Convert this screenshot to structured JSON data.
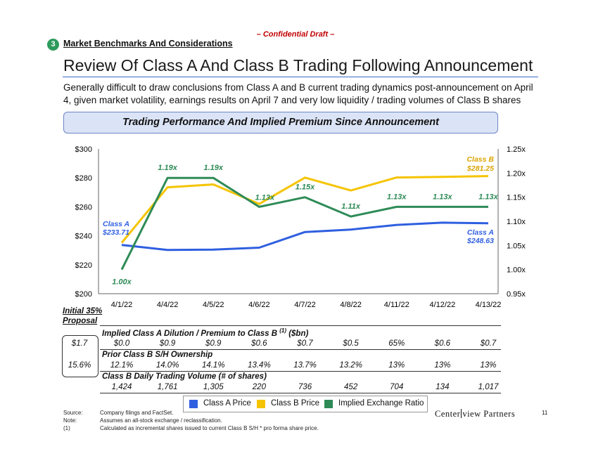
{
  "header": {
    "confidential": "– Confidential Draft –",
    "section_number": "3",
    "section_title": "Market Benchmarks And Considerations",
    "page_title": "Review Of Class A And Class B Trading Following Announcement",
    "subtitle": "Generally difficult to draw conclusions from Class A and B current trading dynamics post-announcement on April 4, given market volatility, earnings results on April 7 and very low liquidity / trading volumes of Class B shares",
    "banner": "Trading Performance And Implied Premium Since Announcement"
  },
  "chart_data": {
    "type": "line",
    "categories": [
      "4/1/22",
      "4/4/22",
      "4/5/22",
      "4/6/22",
      "4/7/22",
      "4/8/22",
      "4/11/22",
      "4/12/22",
      "4/13/22"
    ],
    "left_axis": {
      "ticks": [
        "$200",
        "$220",
        "$240",
        "$260",
        "$280",
        "$300"
      ],
      "range": [
        200,
        300
      ]
    },
    "right_axis": {
      "ticks": [
        "0.95x",
        "1.00x",
        "1.05x",
        "1.10x",
        "1.15x",
        "1.20x",
        "1.25x"
      ],
      "range": [
        0.95,
        1.25
      ]
    },
    "series": [
      {
        "name": "Class A Price",
        "axis": "left",
        "color": "#2f5fe0",
        "values": [
          233.71,
          230.2,
          230.5,
          231.8,
          242.6,
          244.3,
          247.5,
          249.1,
          248.63
        ]
      },
      {
        "name": "Class B Price",
        "axis": "left",
        "color": "#f5c400",
        "values": [
          235.2,
          273.5,
          275.5,
          262.0,
          280.2,
          271.3,
          280.3,
          280.7,
          281.25
        ]
      },
      {
        "name": "Implied Exchange Ratio",
        "axis": "right",
        "color": "#2e8b57",
        "values": [
          1.0,
          1.19,
          1.19,
          1.13,
          1.15,
          1.11,
          1.13,
          1.13,
          1.13
        ]
      }
    ],
    "ratio_labels": [
      "1.00x",
      "1.19x",
      "1.19x",
      "1.13x",
      "1.15x",
      "1.11x",
      "1.13x",
      "1.13x",
      "1.13x"
    ],
    "annotations": {
      "class_a_start_name": "Class A",
      "class_a_start_value": "$233.71",
      "class_a_end_name": "Class A",
      "class_a_end_value": "$248.63",
      "class_b_end_name": "Class B",
      "class_b_end_value": "$281.25"
    }
  },
  "table": {
    "initial_header_line1": "Initial 35%",
    "initial_header_line2": "Proposal",
    "dilution_title": "Implied Class A Dilution / Premium to Class B",
    "dilution_footnote": "(1)",
    "dilution_unit": "($bn)",
    "dilution_initial": "$1.7",
    "dilution_values": [
      "$0.0",
      "$0.9",
      "$0.9",
      "$0.6",
      "$0.7",
      "$0.5",
      "65%",
      "$0.6",
      "$0.7"
    ],
    "ownership_title": "Prior Class B S/H Ownership",
    "ownership_initial": "15.6%",
    "ownership_values": [
      "12.1%",
      "14.0%",
      "14.1%",
      "13.4%",
      "13.7%",
      "13.2%",
      "13%",
      "13%",
      "13%"
    ],
    "volume_title": "Class B Daily Trading Volume (# of shares)",
    "volume_values": [
      "1,424",
      "1,761",
      "1,305",
      "220",
      "736",
      "452",
      "704",
      "134",
      "1,017"
    ]
  },
  "legend": [
    {
      "label": "Class A Price",
      "color": "#2f5fe0"
    },
    {
      "label": "Class B Price",
      "color": "#f5c400"
    },
    {
      "label": "Implied Exchange Ratio",
      "color": "#2e8b57"
    }
  ],
  "footer": {
    "source_key": "Source:",
    "source_text": "Company filings and FactSet.",
    "note_key": "Note:",
    "note_text": "Assumes an all-stock exchange / reclassification.",
    "fn1_key": "(1)",
    "fn1_text": "Calculated as incremental shares issued to current Class B S/H * pro forma share price.",
    "logo_left": "Center",
    "logo_right": "view Partners",
    "page_number": "11"
  }
}
